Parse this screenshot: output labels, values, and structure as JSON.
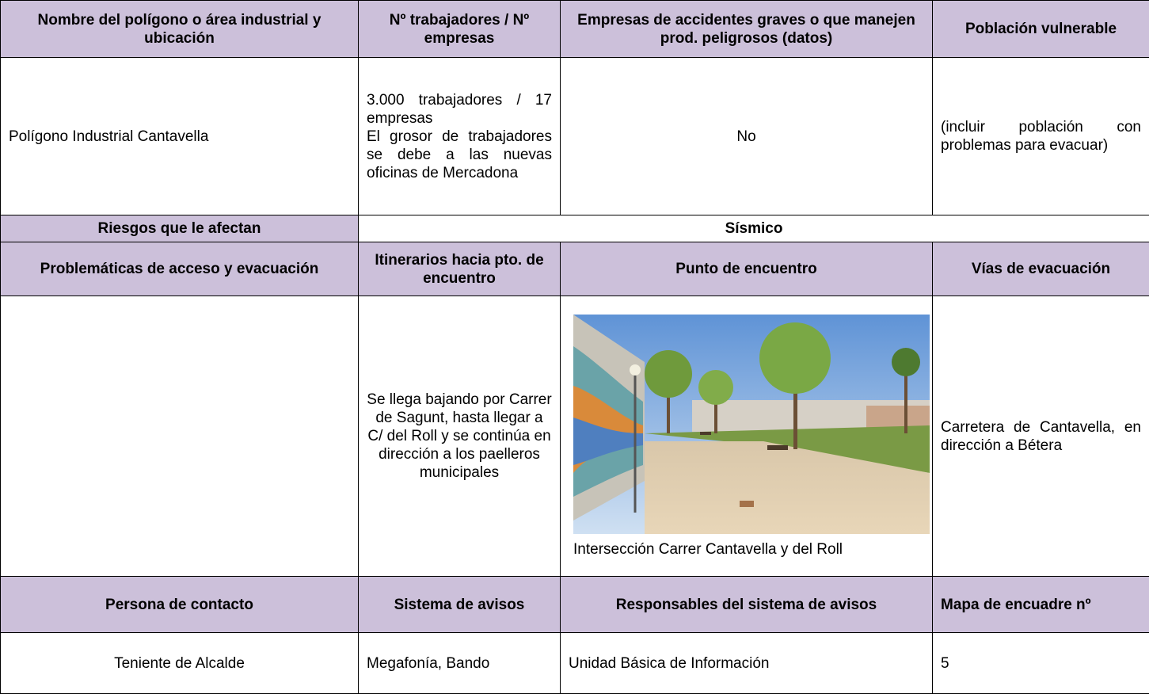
{
  "table": {
    "rows": [
      [
        "Nombre del polígono o área industrial y ubicación",
        "Nº trabajadores / Nº empresas",
        "Empresas de accidentes graves o que manejen prod. peligrosos (datos)",
        "Población vulnerable"
      ],
      [
        "Polígono Industrial Cantavella",
        [
          "3.000 trabajadores / 17 empresas",
          "El grosor de trabajadores se debe a las nuevas oficinas de Mercadona"
        ],
        "No",
        "(incluir población con problemas para evacuar)"
      ],
      [
        "Riesgos que le afectan",
        "Sísmico"
      ],
      [
        "Problemáticas de acceso y evacuación",
        "Itinerarios hacia pto. de encuentro",
        "Punto de encuentro",
        "Vías de evacuación"
      ],
      [
        "Se llega bajando por Carrer de Sagunt, hasta llegar a C/ del Roll y se continúa en dirección a los paelleros municipales",
        "Intersección Carrer Cantavella y del Roll",
        "Carretera de Cantavella, en dirección a Bétera"
      ],
      [
        "Persona de contacto",
        "Sistema de avisos",
        "Responsables del sistema de avisos",
        "Mapa de encuadre nº"
      ],
      [
        "Teniente de Alcalde",
        "Megafonía, Bando",
        "Unidad Básica de Información",
        "5"
      ]
    ]
  }
}
